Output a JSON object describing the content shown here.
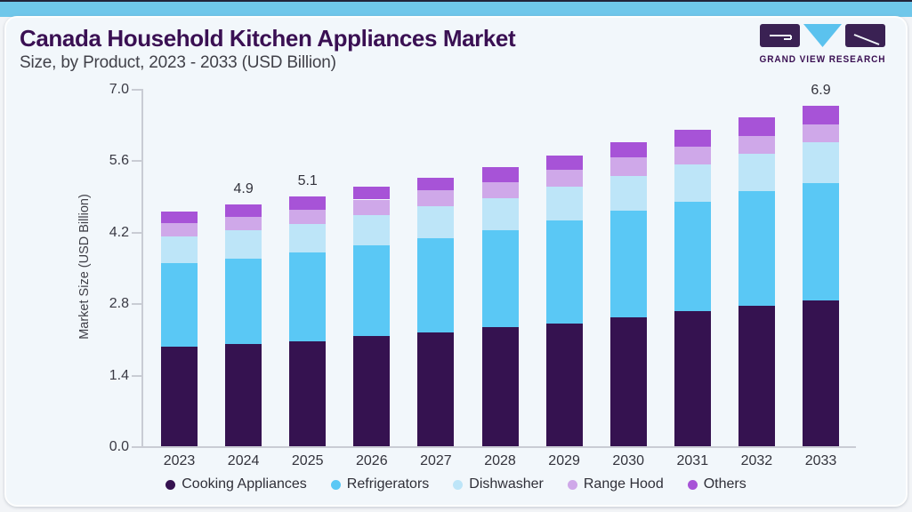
{
  "page": {
    "title": "Canada Household Kitchen Appliances Market",
    "subtitle": "Size, by Product, 2023 - 2033 (USD Billion)",
    "brand": {
      "wordmark": "GRAND VIEW RESEARCH"
    },
    "colors": {
      "accent_bar": "#6fc7ea",
      "card_bg": "#f2f7fb",
      "title": "#3a1053",
      "axis_line": "#c9ccd4",
      "logo_purple": "#3a2153",
      "logo_blue": "#5bc2ee"
    }
  },
  "chart_data": {
    "type": "bar",
    "stacked": true,
    "title": "Canada Household Kitchen Appliances Market Size, by Product, 2023 - 2033 (USD Billion)",
    "categories": [
      "2023",
      "2024",
      "2025",
      "2026",
      "2027",
      "2028",
      "2029",
      "2030",
      "2031",
      "2032",
      "2033"
    ],
    "series": [
      {
        "name": "Cooking Appliances",
        "color": "#351250",
        "values": [
          2.02,
          2.07,
          2.13,
          2.24,
          2.31,
          2.41,
          2.49,
          2.62,
          2.74,
          2.85,
          2.96
        ]
      },
      {
        "name": "Refrigerators",
        "color": "#5ac8f5",
        "values": [
          1.7,
          1.74,
          1.8,
          1.84,
          1.91,
          1.97,
          2.09,
          2.15,
          2.21,
          2.32,
          2.37
        ]
      },
      {
        "name": "Dishwasher",
        "color": "#bde5f8",
        "values": [
          0.54,
          0.57,
          0.57,
          0.6,
          0.64,
          0.65,
          0.68,
          0.71,
          0.77,
          0.76,
          0.84
        ]
      },
      {
        "name": "Range Hood",
        "color": "#cfa8e9",
        "values": [
          0.26,
          0.27,
          0.3,
          0.32,
          0.33,
          0.33,
          0.34,
          0.38,
          0.35,
          0.35,
          0.36
        ]
      },
      {
        "name": "Others",
        "color": "#a753d7",
        "values": [
          0.24,
          0.25,
          0.26,
          0.26,
          0.26,
          0.3,
          0.29,
          0.3,
          0.34,
          0.39,
          0.37
        ]
      }
    ],
    "totals": [
      4.76,
      4.9,
      5.06,
      5.26,
      5.45,
      5.66,
      5.89,
      6.16,
      6.41,
      6.67,
      6.9
    ],
    "bar_total_labels": [
      "",
      "4.9",
      "5.1",
      "",
      "",
      "",
      "",
      "",
      "",
      "",
      "6.9"
    ],
    "xlabel": "",
    "ylabel": "Market Size (USD Billion)",
    "ylim": [
      0.0,
      7.0
    ],
    "yticks": [
      "0.0",
      "1.4",
      "2.8",
      "4.2",
      "5.6",
      "7.0"
    ],
    "grid": false,
    "legend_position": "bottom"
  }
}
